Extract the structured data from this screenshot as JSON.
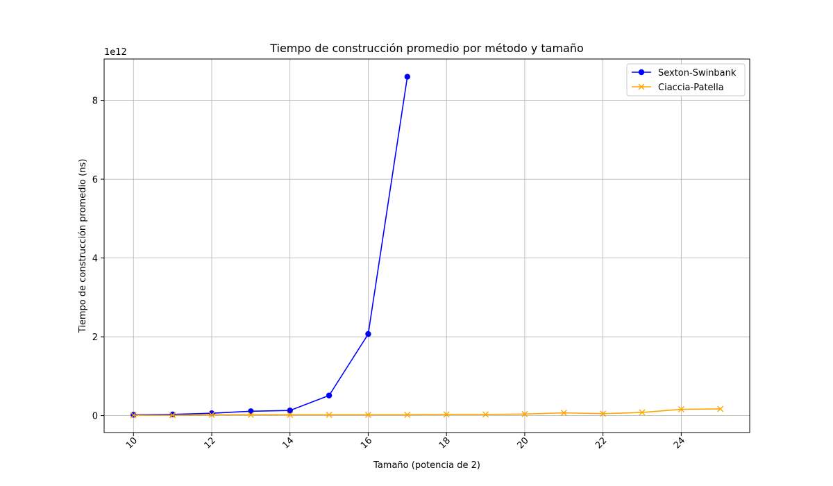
{
  "chart_data": {
    "type": "line",
    "title": "Tiempo de construcción promedio por método y tamaño",
    "xlabel": "Tamaño (potencia de 2)",
    "ylabel": "Tiempo de construcción promedio (ns)",
    "y_offset_label": "1e12",
    "y_scale_factor": 1000000000000.0,
    "xlim": [
      9.25,
      25.75
    ],
    "ylim": [
      -0.43,
      9.05
    ],
    "x_ticks": [
      10,
      12,
      14,
      16,
      18,
      20,
      22,
      24
    ],
    "x_tick_labels": [
      "10",
      "12",
      "14",
      "16",
      "18",
      "20",
      "22",
      "24"
    ],
    "y_ticks": [
      0,
      2,
      4,
      6,
      8
    ],
    "y_tick_labels": [
      "0",
      "2",
      "4",
      "6",
      "8"
    ],
    "grid": true,
    "legend_position": "top-right",
    "series": [
      {
        "name": "Sexton-Swinbank",
        "color": "#0000ff",
        "marker": "circle",
        "x": [
          10,
          11,
          12,
          13,
          14,
          15,
          16,
          17
        ],
        "y": [
          0.02,
          0.03,
          0.06,
          0.11,
          0.13,
          0.51,
          2.07,
          8.6
        ]
      },
      {
        "name": "Ciaccia-Patella",
        "color": "#ffa500",
        "marker": "x",
        "x": [
          10,
          11,
          12,
          13,
          14,
          15,
          16,
          17,
          18,
          19,
          20,
          21,
          22,
          23,
          24,
          25
        ],
        "y": [
          0.01,
          0.01,
          0.02,
          0.02,
          0.02,
          0.02,
          0.02,
          0.02,
          0.03,
          0.03,
          0.04,
          0.07,
          0.05,
          0.08,
          0.16,
          0.17
        ]
      }
    ]
  }
}
